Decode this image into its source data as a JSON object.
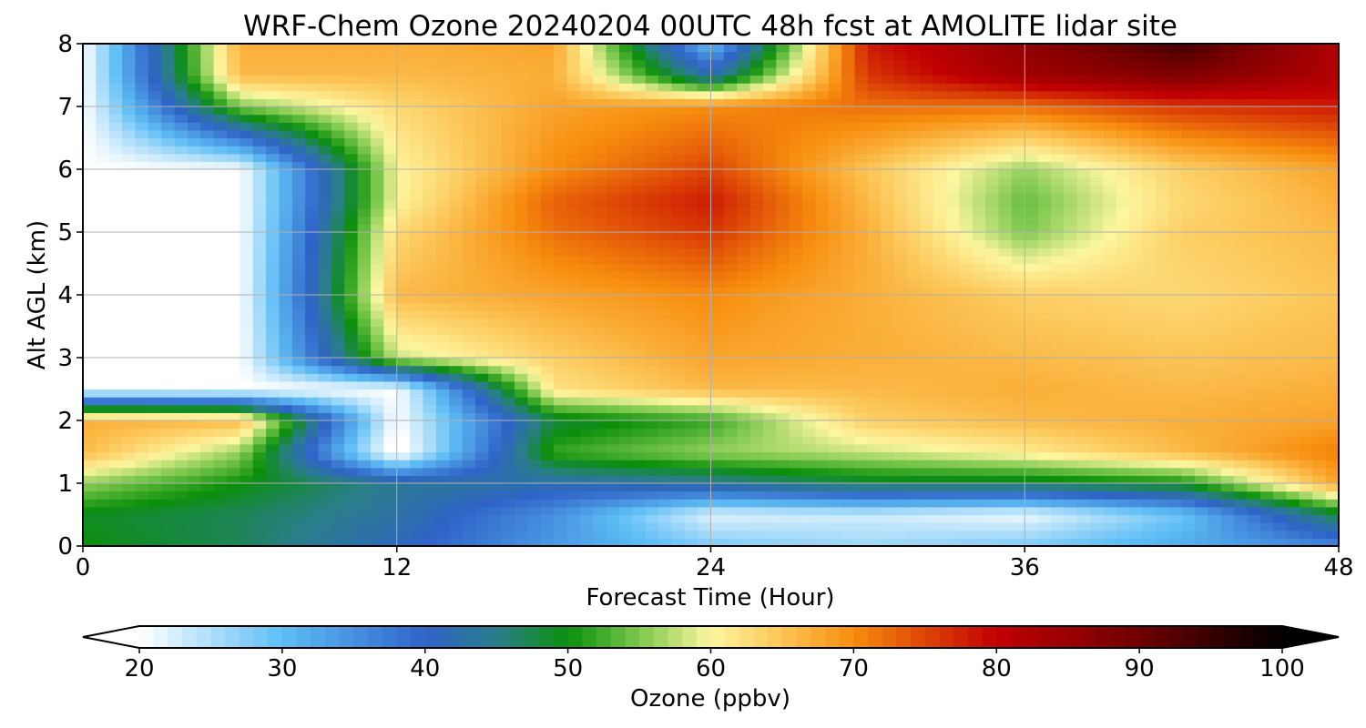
{
  "chart_data": {
    "type": "heatmap",
    "subtype": "filled-contour time-height cross-section",
    "title": "WRF-Chem Ozone  20240204 00UTC 48h fcst at AMOLITE lidar site",
    "xlabel": "Forecast Time (Hour)",
    "ylabel": "Alt AGL (km)",
    "xlim": [
      0,
      48
    ],
    "ylim": [
      0,
      8
    ],
    "xticks": [
      0,
      12,
      24,
      36,
      48
    ],
    "yticks": [
      0,
      1,
      2,
      3,
      4,
      5,
      6,
      7,
      8
    ],
    "grid": true,
    "x": [
      0,
      6,
      12,
      18,
      24,
      30,
      36,
      42,
      48
    ],
    "y": [
      0,
      0.5,
      1,
      1.5,
      2,
      2.5,
      3,
      4,
      5,
      5.5,
      6,
      7,
      7.5,
      8
    ],
    "z": [
      [
        50,
        47,
        41,
        34,
        28,
        26,
        28,
        32,
        36
      ],
      [
        49,
        47,
        43,
        35,
        22,
        23,
        21,
        29,
        48
      ],
      [
        56,
        50,
        44,
        42,
        44,
        48,
        48,
        50,
        68
      ],
      [
        66,
        56,
        18,
        52,
        56,
        58,
        61,
        66,
        71
      ],
      [
        67,
        66,
        20,
        48,
        52,
        64,
        66,
        67,
        68
      ],
      [
        20,
        20,
        20,
        62,
        66,
        66,
        67,
        66,
        67
      ],
      [
        20,
        20,
        58,
        64,
        68,
        67,
        66,
        65,
        66
      ],
      [
        20,
        20,
        66,
        68,
        70,
        67,
        64,
        63,
        65
      ],
      [
        20,
        20,
        63,
        72,
        76,
        67,
        55,
        64,
        66
      ],
      [
        20,
        20,
        60,
        73,
        78,
        66,
        54,
        63,
        67
      ],
      [
        20,
        20,
        60,
        70,
        75,
        65,
        56,
        64,
        68
      ],
      [
        20,
        55,
        63,
        68,
        70,
        72,
        72,
        76,
        78
      ],
      [
        20,
        66,
        66,
        67,
        42,
        76,
        84,
        88,
        82
      ],
      [
        20,
        67,
        67,
        68,
        30,
        78,
        86,
        94,
        82
      ]
    ],
    "colorbar": {
      "label": "Ozone  (ppbv)",
      "range": [
        20,
        100
      ],
      "ticks": [
        20,
        30,
        40,
        50,
        60,
        70,
        80,
        90,
        100
      ],
      "extend": "both",
      "orientation": "horizontal",
      "color_stops": [
        {
          "value": 20,
          "color": "#ffffff"
        },
        {
          "value": 30,
          "color": "#5ebef5"
        },
        {
          "value": 40,
          "color": "#2f63c8"
        },
        {
          "value": 45,
          "color": "#2a7e8a"
        },
        {
          "value": 50,
          "color": "#0b8f0b"
        },
        {
          "value": 55,
          "color": "#7cc84c"
        },
        {
          "value": 60,
          "color": "#fdf6a0"
        },
        {
          "value": 65,
          "color": "#fcc556"
        },
        {
          "value": 70,
          "color": "#f78d0e"
        },
        {
          "value": 75,
          "color": "#dd4506"
        },
        {
          "value": 80,
          "color": "#c20002"
        },
        {
          "value": 90,
          "color": "#6e0000"
        },
        {
          "value": 100,
          "color": "#000000"
        }
      ]
    }
  }
}
